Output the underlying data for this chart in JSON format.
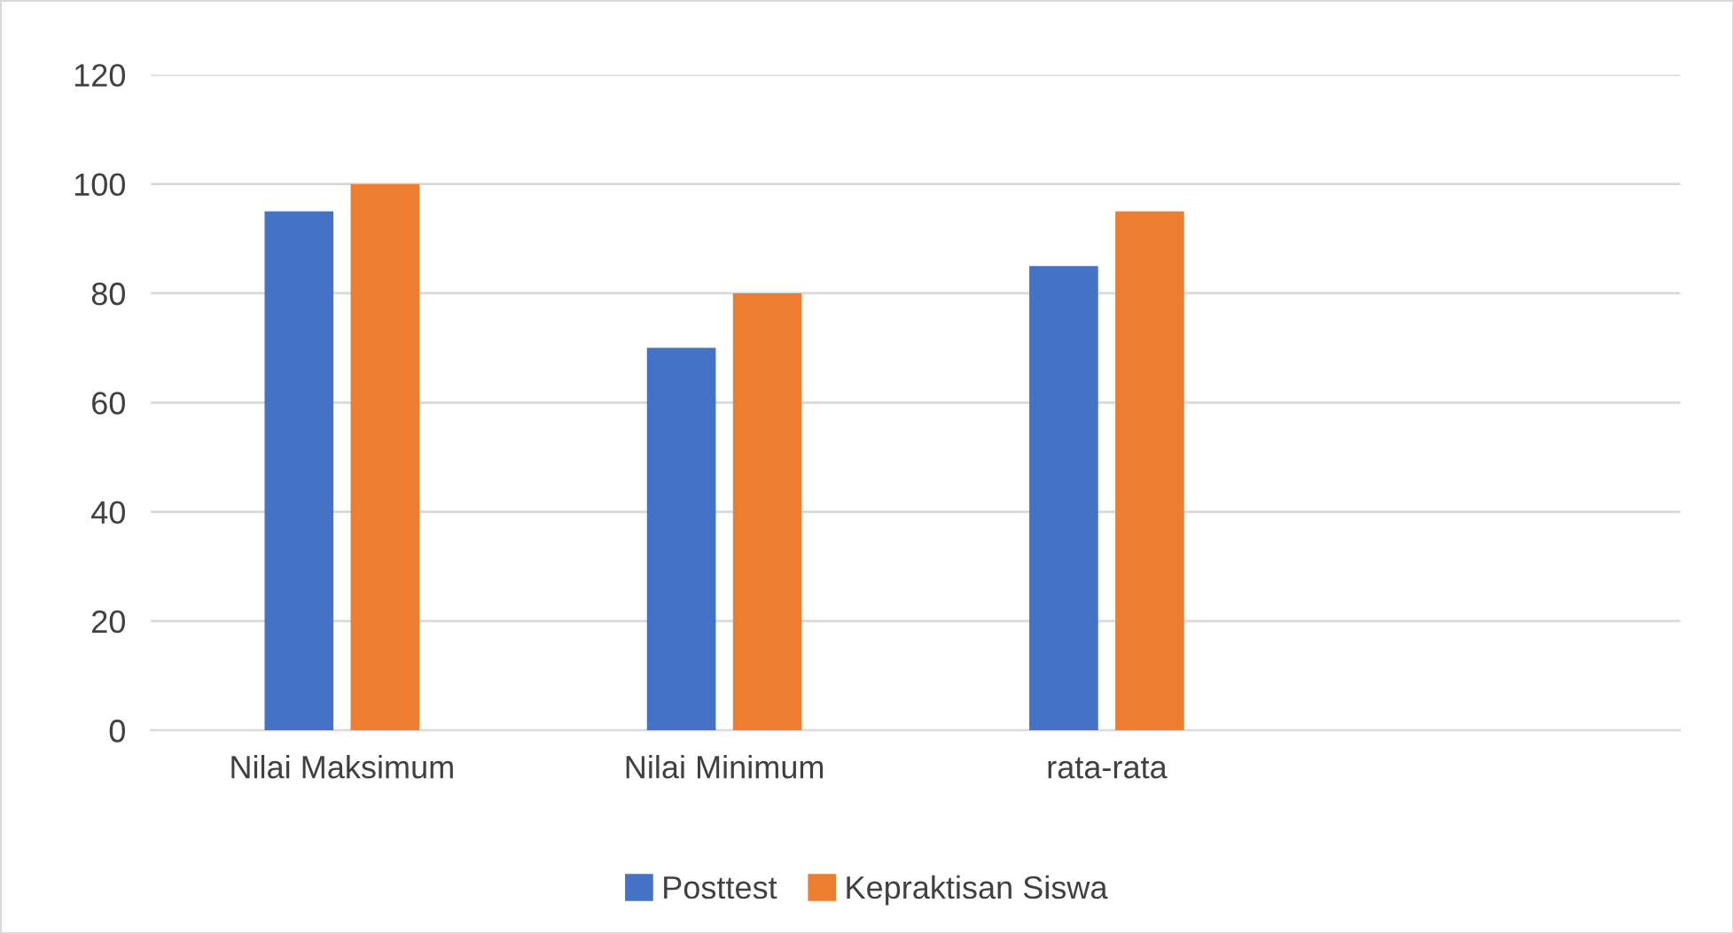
{
  "chart_data": {
    "type": "bar",
    "categories": [
      "Nilai Maksimum",
      "Nilai Minimum",
      "rata-rata",
      null
    ],
    "series": [
      {
        "name": "Posttest",
        "color": "#4472c4",
        "values": [
          95,
          70,
          85,
          null
        ]
      },
      {
        "name": "Kepraktisan Siswa",
        "color": "#ed7d31",
        "values": [
          100,
          80,
          95,
          null
        ]
      }
    ],
    "ylim": [
      0,
      120
    ],
    "yticks": [
      0,
      20,
      40,
      60,
      80,
      100,
      120
    ],
    "grid": "y",
    "legend": "bottom"
  }
}
